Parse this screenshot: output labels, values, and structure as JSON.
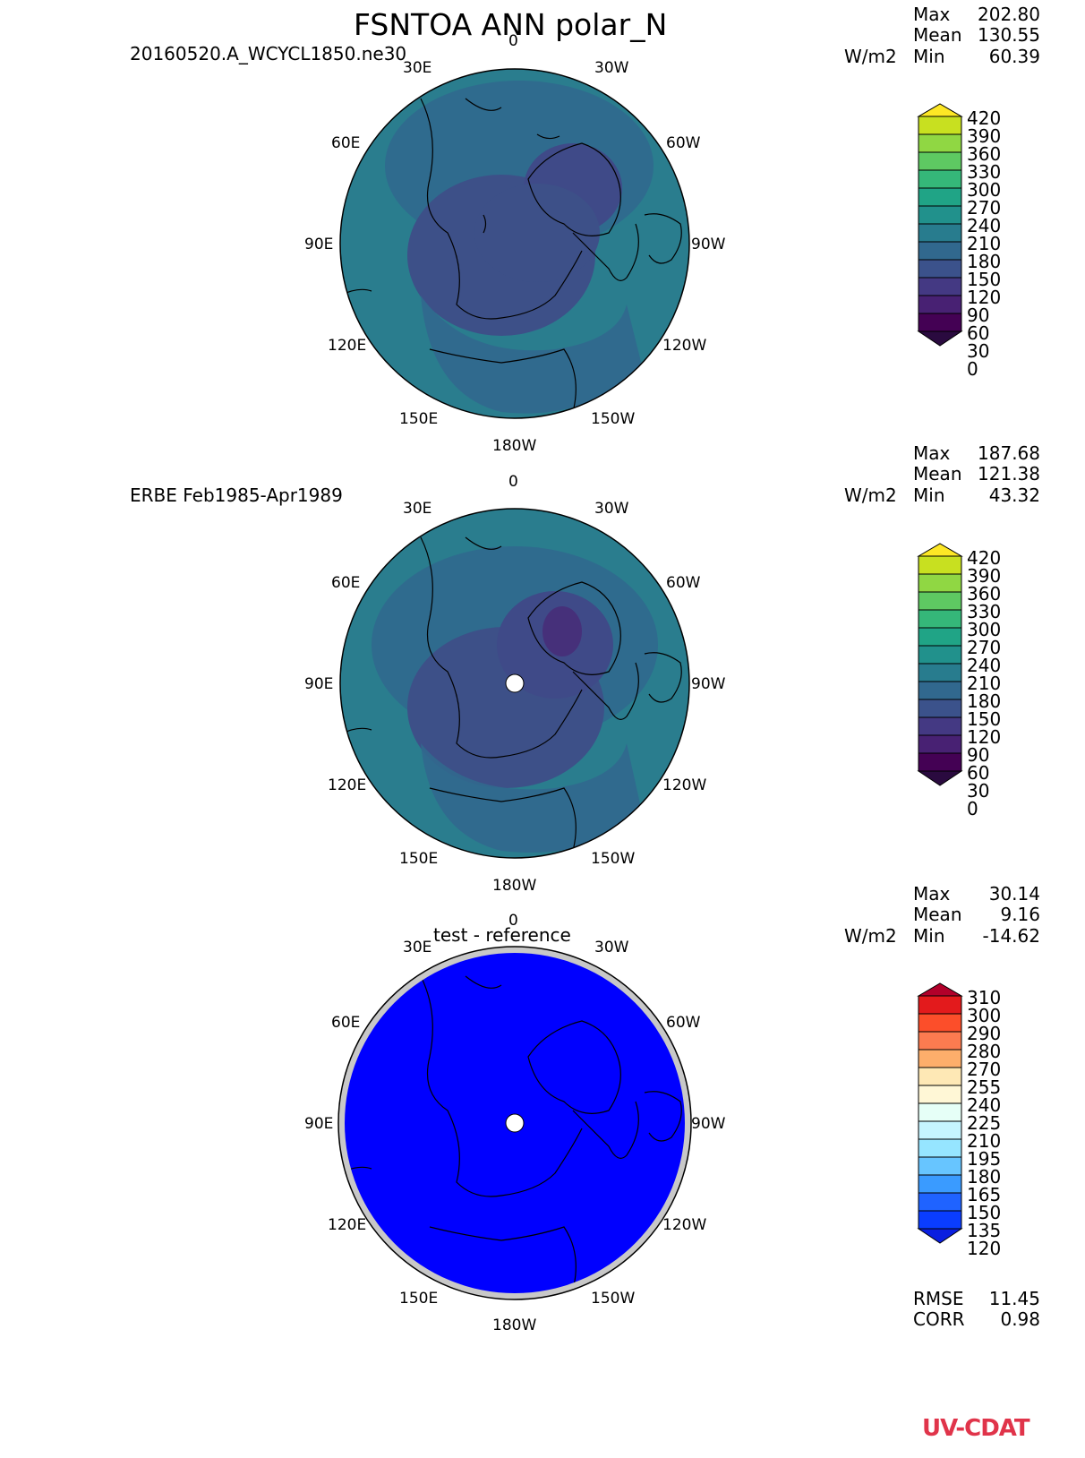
{
  "title": "FSNTOA ANN polar_N",
  "watermark": "UV-CDAT",
  "units": "W/m2",
  "stat_labels": {
    "max": "Max",
    "mean": "Mean",
    "min": "Min"
  },
  "panels": [
    {
      "subtitle": "20160520.A_WCYCL1850.ne30",
      "stats": {
        "max": "202.80",
        "mean": "130.55",
        "min": "60.39"
      },
      "lon_labels": {
        "top": "0",
        "lon30e": "30E",
        "lon30w": "30W",
        "lon60e": "60E",
        "lon60w": "60W",
        "lon90e": "90E",
        "lon90w": "90W",
        "lon120e": "120E",
        "lon120w": "120W",
        "lon150e": "150E",
        "lon150w": "150W",
        "lon180w": "180W"
      },
      "colorbar": {
        "ticks": [
          "420",
          "390",
          "360",
          "330",
          "300",
          "270",
          "240",
          "210",
          "180",
          "150",
          "120",
          "90",
          "60",
          "30",
          "0"
        ],
        "colors": [
          "#fde725",
          "#c8e020",
          "#90d743",
          "#5ec962",
          "#35b779",
          "#20a486",
          "#21918c",
          "#287c8e",
          "#31688e",
          "#3b528b",
          "#443983",
          "#482173",
          "#440154",
          "#2a0a3f"
        ]
      }
    },
    {
      "subtitle": "ERBE Feb1985-Apr1989",
      "stats": {
        "max": "187.68",
        "mean": "121.38",
        "min": "43.32"
      },
      "lon_labels": {
        "top": "0",
        "lon30e": "30E",
        "lon30w": "30W",
        "lon60e": "60E",
        "lon60w": "60W",
        "lon90e": "90E",
        "lon90w": "90W",
        "lon120e": "120E",
        "lon120w": "120W",
        "lon150e": "150E",
        "lon150w": "150W",
        "lon180w": "180W"
      },
      "colorbar": {
        "ticks": [
          "420",
          "390",
          "360",
          "330",
          "300",
          "270",
          "240",
          "210",
          "180",
          "150",
          "120",
          "90",
          "60",
          "30",
          "0"
        ],
        "colors": [
          "#fde725",
          "#c8e020",
          "#90d743",
          "#5ec962",
          "#35b779",
          "#20a486",
          "#21918c",
          "#287c8e",
          "#31688e",
          "#3b528b",
          "#443983",
          "#482173",
          "#440154",
          "#2a0a3f"
        ]
      }
    },
    {
      "subtitle": "test - reference",
      "stats": {
        "max": "30.14",
        "mean": "9.16",
        "min": "-14.62"
      },
      "lon_labels": {
        "top": "0",
        "lon30e": "30E",
        "lon30w": "30W",
        "lon60e": "60E",
        "lon60w": "60W",
        "lon90e": "90E",
        "lon90w": "90W",
        "lon120e": "120E",
        "lon120w": "120W",
        "lon150e": "150E",
        "lon150w": "150W",
        "lon180w": "180W"
      },
      "colorbar": {
        "ticks": [
          "310",
          "300",
          "290",
          "280",
          "270",
          "255",
          "240",
          "225",
          "210",
          "195",
          "180",
          "165",
          "150",
          "135",
          "120"
        ],
        "colors": [
          "#b2002a",
          "#e31a1c",
          "#fc4e2a",
          "#fc7b50",
          "#fdae6b",
          "#fee8b5",
          "#fff7d6",
          "#e6fff7",
          "#c6f5ff",
          "#96e5ff",
          "#67c5ff",
          "#3a9bff",
          "#1f63ff",
          "#0a3dff",
          "#0a1fe0"
        ]
      },
      "rmse_label": "RMSE",
      "rmse": "11.45",
      "corr_label": "CORR",
      "corr": "0.98"
    }
  ]
}
